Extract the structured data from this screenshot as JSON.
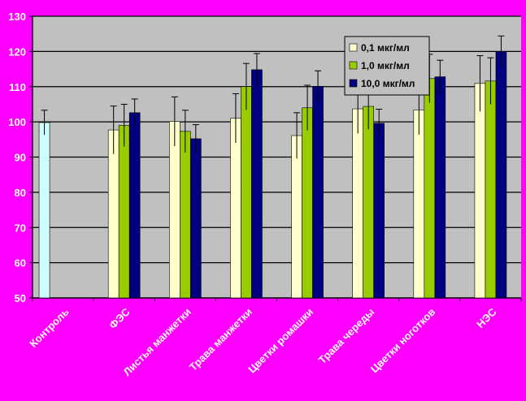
{
  "chart_data": {
    "type": "bar",
    "title": "",
    "xlabel": "",
    "ylabel": "",
    "ylim": [
      50,
      130
    ],
    "yticks": [
      50,
      60,
      70,
      80,
      90,
      100,
      110,
      120,
      130
    ],
    "grid": "horizontal",
    "legend_position": "top-right",
    "categories": [
      "Контроль",
      "ФЭС",
      "Листья манжетки",
      "Трава манжетки",
      "Цветки ромашки",
      "Трава череды",
      "Цветки ноготков",
      "НЭС"
    ],
    "control": {
      "value": 99.8,
      "error": 3.5,
      "color": "#ccffff"
    },
    "series": [
      {
        "name": "0,1 мкг/мл",
        "color": "#ffffcc",
        "values": [
          null,
          97.7,
          100.1,
          101.0,
          96.1,
          103.7,
          103.4,
          110.9
        ],
        "errors": [
          null,
          6.8,
          7.0,
          7.0,
          6.5,
          7.0,
          7.0,
          7.9
        ]
      },
      {
        "name": "1,0  мкг/мл",
        "color": "#99cc00",
        "values": [
          null,
          99.0,
          97.3,
          110.0,
          104.0,
          104.4,
          112.3,
          111.6
        ],
        "errors": [
          null,
          6.0,
          6.0,
          6.6,
          6.4,
          6.5,
          6.9,
          6.6
        ]
      },
      {
        "name": "10,0 мкг/мл",
        "color": "#000080",
        "values": [
          null,
          102.6,
          95.2,
          114.8,
          110.1,
          99.6,
          112.8,
          120.0
        ],
        "errors": [
          null,
          3.9,
          4.0,
          4.6,
          4.4,
          4.0,
          4.7,
          4.4
        ]
      }
    ]
  }
}
